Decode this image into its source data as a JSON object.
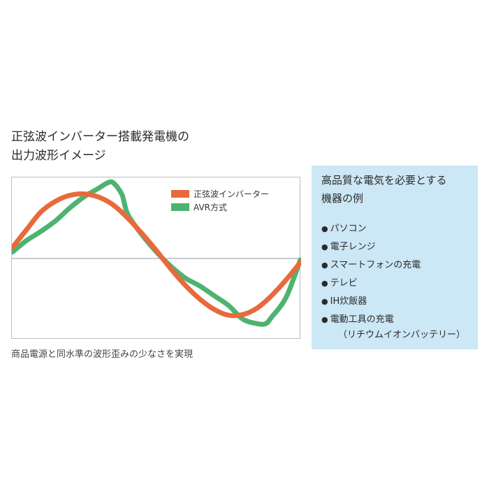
{
  "title": {
    "line1": "正弦波インバーター搭載発電機の",
    "line2": "出力波形イメージ"
  },
  "caption": "商品電源と同水準の波形歪みの少なさを実現",
  "info_panel": {
    "title_line1": "高品質な電気を必要とする",
    "title_line2": "機器の例",
    "items": [
      "パソコン",
      "電子レンジ",
      "スマートフォンの充電",
      "テレビ",
      "IH炊飯器",
      "電動工具の充電"
    ],
    "sub_note": "（リチウムイオンバッテリー）",
    "background_color": "#cce7f5"
  },
  "chart_data": {
    "type": "line",
    "title": "正弦波インバーター搭載発電機の出力波形イメージ",
    "xlabel": "",
    "ylabel": "",
    "xlim": [
      0,
      1
    ],
    "ylim": [
      -1.2,
      1.2
    ],
    "grid": false,
    "zero_line": true,
    "legend_position": "top-right",
    "series": [
      {
        "name": "正弦波インバーター",
        "color": "#e86a3c",
        "x": [
          0,
          0.05,
          0.1,
          0.15,
          0.2,
          0.25,
          0.3,
          0.35,
          0.4,
          0.45,
          0.5,
          0.55,
          0.6,
          0.65,
          0.7,
          0.75,
          0.8,
          0.85,
          0.9,
          0.95,
          1.0
        ],
        "y": [
          0.17,
          0.45,
          0.72,
          0.88,
          0.97,
          0.99,
          0.94,
          0.82,
          0.62,
          0.38,
          0.12,
          -0.16,
          -0.41,
          -0.62,
          -0.78,
          -0.87,
          -0.86,
          -0.76,
          -0.57,
          -0.33,
          -0.06
        ]
      },
      {
        "name": "AVR方式",
        "color": "#4db36f",
        "x": [
          0,
          0.05,
          0.1,
          0.15,
          0.2,
          0.25,
          0.3,
          0.33,
          0.35,
          0.38,
          0.4,
          0.45,
          0.5,
          0.55,
          0.6,
          0.65,
          0.7,
          0.75,
          0.8,
          0.85,
          0.88,
          0.9,
          0.95,
          1.0
        ],
        "y": [
          0.1,
          0.28,
          0.42,
          0.58,
          0.78,
          0.95,
          1.08,
          1.16,
          1.16,
          0.98,
          0.68,
          0.36,
          0.1,
          -0.12,
          -0.3,
          -0.42,
          -0.57,
          -0.72,
          -0.93,
          -1.0,
          -1.0,
          -0.9,
          -0.6,
          -0.02
        ]
      }
    ]
  }
}
